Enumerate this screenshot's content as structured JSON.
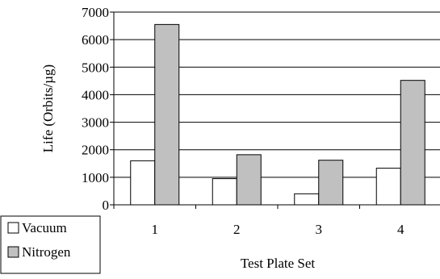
{
  "chart_data": {
    "type": "bar",
    "title": "",
    "xlabel": "Test Plate Set",
    "ylabel": "Life (Orbits/µg)",
    "categories": [
      "1",
      "2",
      "3",
      "4"
    ],
    "series": [
      {
        "name": "Vacuum",
        "values": [
          1600,
          950,
          400,
          1330
        ],
        "color": "#ffffff"
      },
      {
        "name": "Nitrogen",
        "values": [
          6550,
          1820,
          1620,
          4520
        ],
        "color": "#c0c0c0"
      }
    ],
    "ylim": [
      0,
      7000
    ],
    "yticks": [
      "0",
      "1000",
      "2000",
      "3000",
      "4000",
      "5000",
      "6000",
      "7000"
    ],
    "grid": true,
    "legend_position": "bottom-left"
  }
}
